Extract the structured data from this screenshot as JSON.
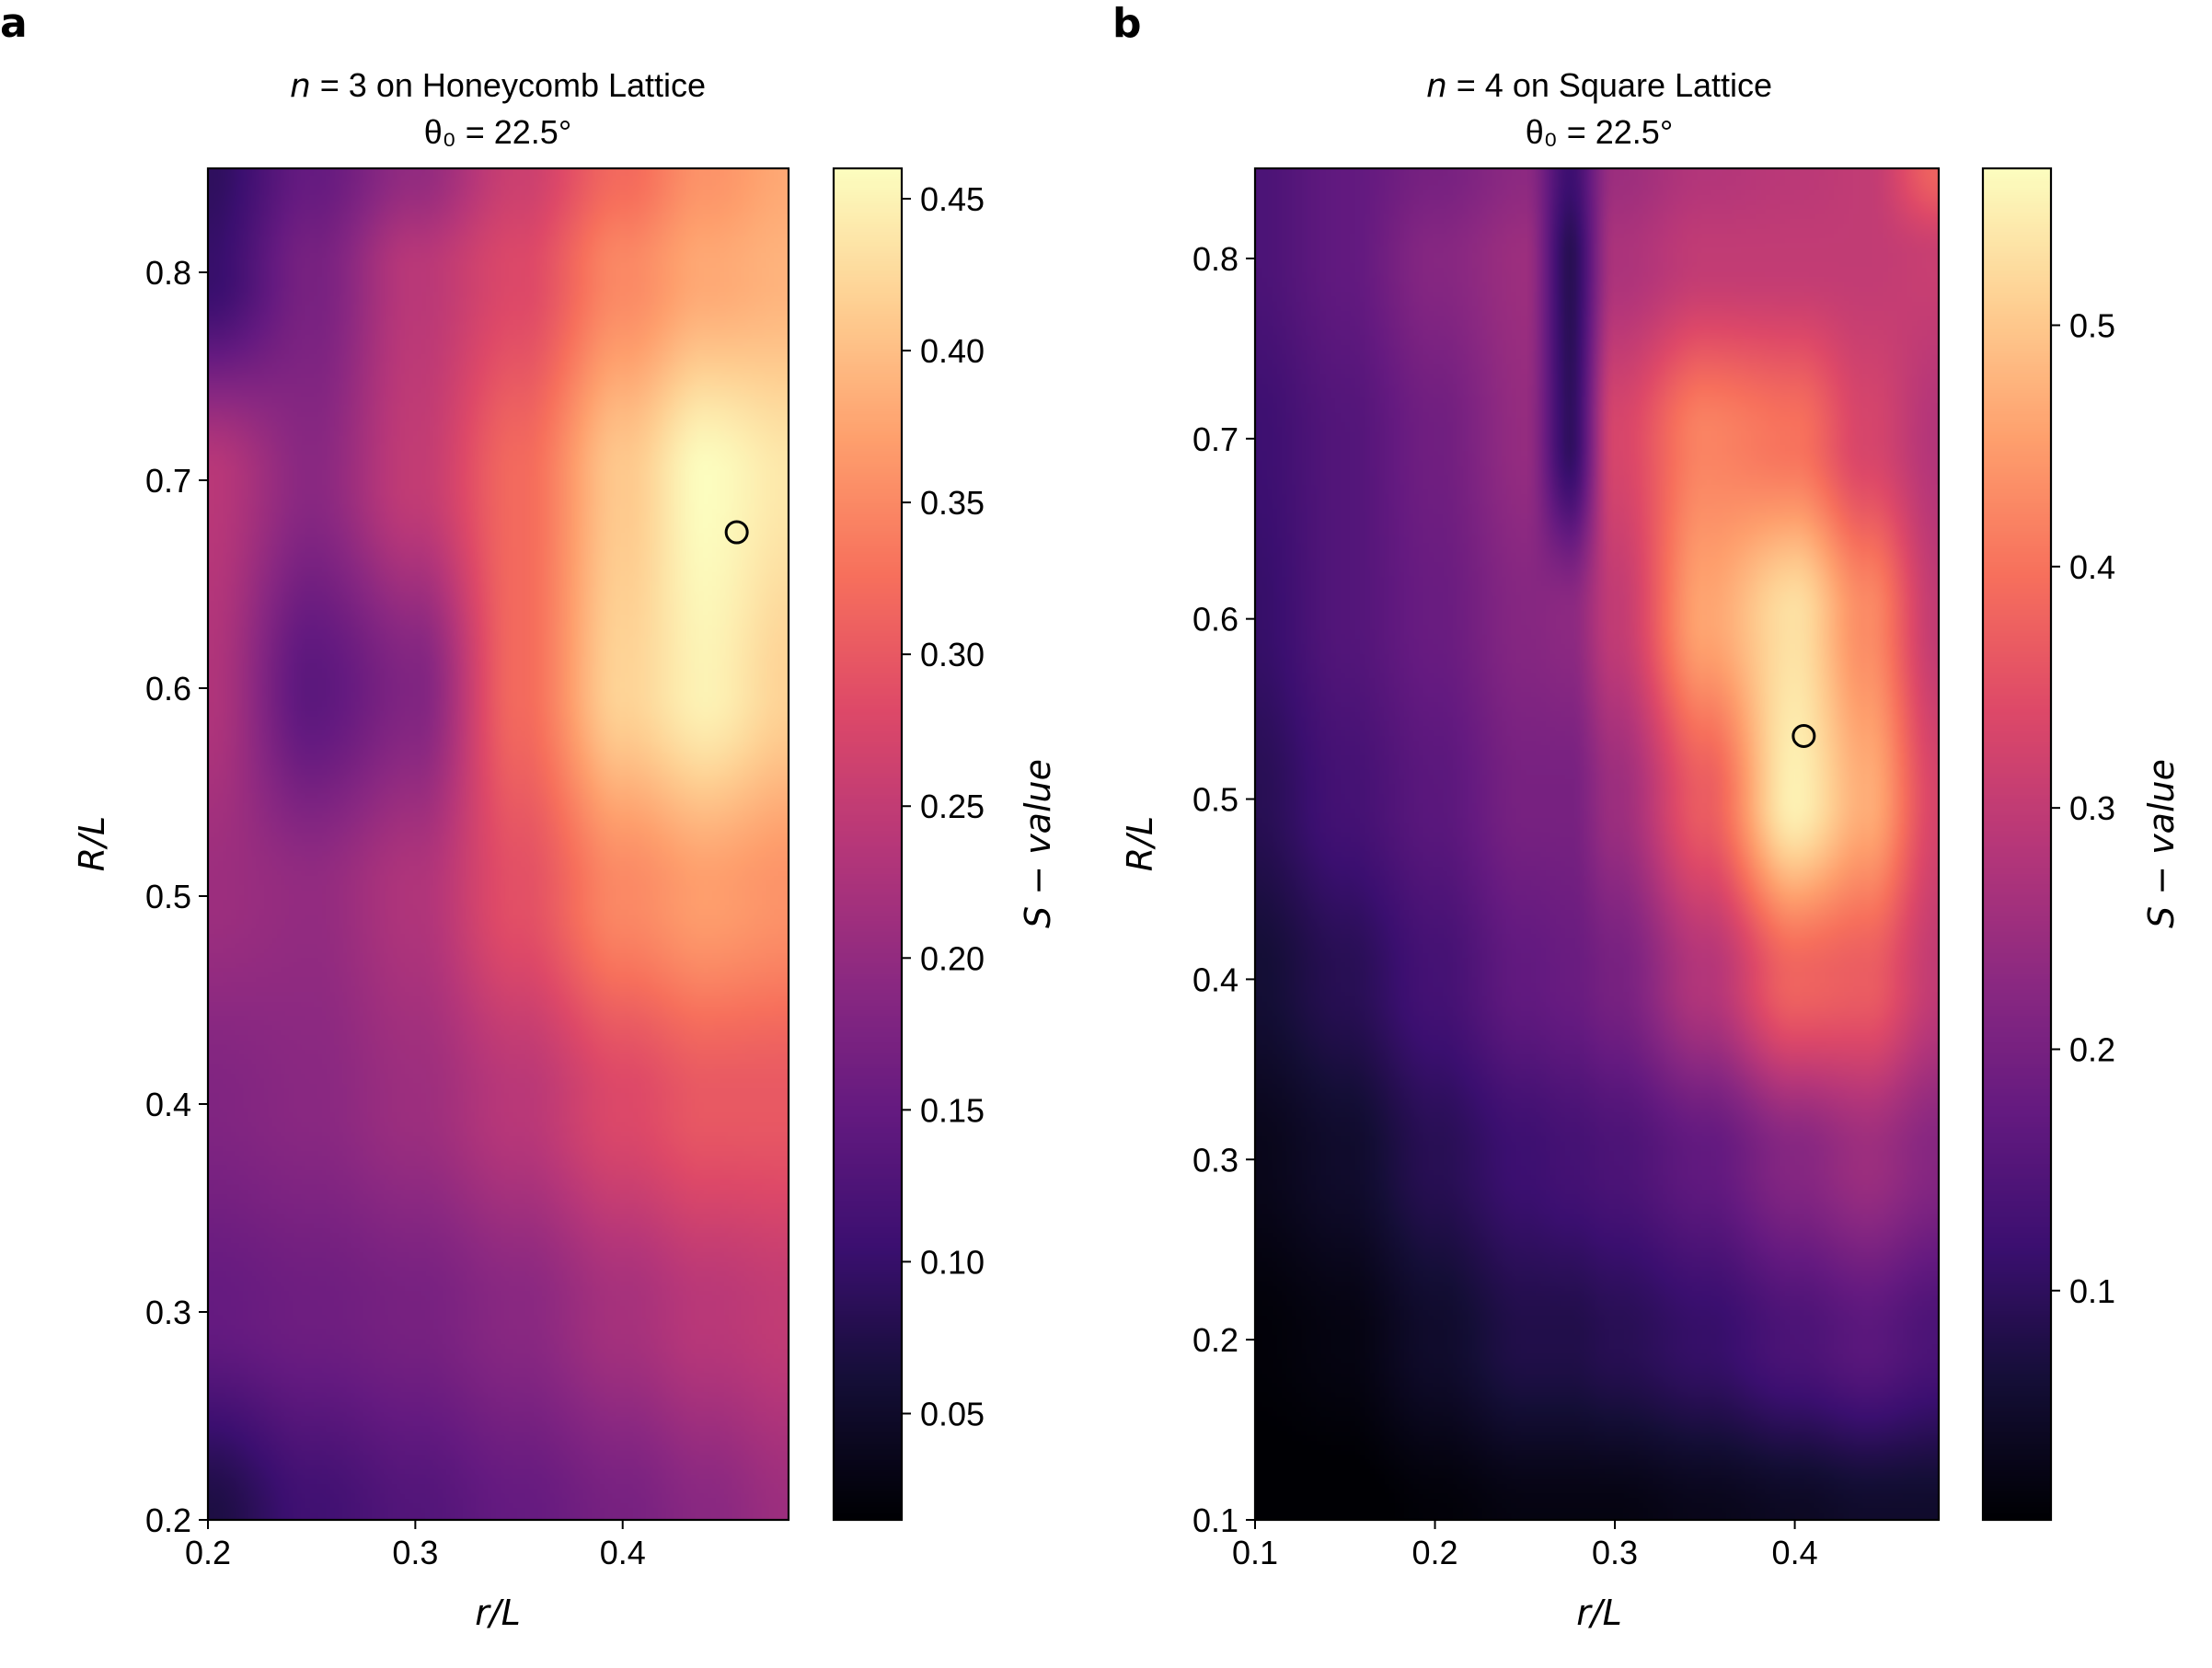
{
  "figure": {
    "panels": [
      "a",
      "b"
    ]
  },
  "chart_data": [
    {
      "type": "heatmap",
      "panel": "a",
      "title_line1_prefix": "n",
      "title_line1_rest": " = 3 on Honeycomb Lattice",
      "title_line2": "θ₀ = 22.5°",
      "xlabel": "r/L",
      "ylabel": "R/L",
      "colorbar_label": "S − value",
      "colormap": "magma",
      "xlim": [
        0.2,
        0.48
      ],
      "ylim": [
        0.2,
        0.85
      ],
      "xticks": [
        0.2,
        0.3,
        0.4
      ],
      "xtick_labels": [
        "0.2",
        "0.3",
        "0.4"
      ],
      "yticks": [
        0.2,
        0.3,
        0.4,
        0.5,
        0.6,
        0.7,
        0.8
      ],
      "ytick_labels": [
        "0.2",
        "0.3",
        "0.4",
        "0.5",
        "0.6",
        "0.7",
        "0.8"
      ],
      "clim": [
        0.015,
        0.46
      ],
      "cticks": [
        0.05,
        0.1,
        0.15,
        0.2,
        0.25,
        0.3,
        0.35,
        0.4,
        0.45
      ],
      "ctick_labels": [
        "0.05",
        "0.10",
        "0.15",
        "0.20",
        "0.25",
        "0.30",
        "0.35",
        "0.40",
        "0.45"
      ],
      "marker": {
        "x": 0.455,
        "y": 0.675,
        "style": "open circle"
      },
      "grid": false,
      "field": {
        "x": [
          0.2,
          0.25,
          0.3,
          0.35,
          0.4,
          0.44,
          0.48
        ],
        "y": [
          0.2,
          0.3,
          0.4,
          0.5,
          0.6,
          0.7,
          0.8,
          0.85
        ],
        "z": [
          [
            0.07,
            0.11,
            0.13,
            0.15,
            0.17,
            0.19,
            0.21
          ],
          [
            0.15,
            0.16,
            0.17,
            0.19,
            0.22,
            0.24,
            0.25
          ],
          [
            0.18,
            0.19,
            0.21,
            0.24,
            0.28,
            0.3,
            0.3
          ],
          [
            0.21,
            0.2,
            0.23,
            0.29,
            0.35,
            0.37,
            0.36
          ],
          [
            0.23,
            0.14,
            0.18,
            0.32,
            0.42,
            0.45,
            0.42
          ],
          [
            0.24,
            0.19,
            0.25,
            0.32,
            0.41,
            0.46,
            0.44
          ],
          [
            0.1,
            0.17,
            0.24,
            0.28,
            0.35,
            0.38,
            0.39
          ],
          [
            0.09,
            0.15,
            0.2,
            0.26,
            0.32,
            0.36,
            0.38
          ]
        ]
      }
    },
    {
      "type": "heatmap",
      "panel": "b",
      "title_line1_prefix": "n",
      "title_line1_rest": " = 4 on Square Lattice",
      "title_line2": "θ₀ = 22.5°",
      "xlabel": "r/L",
      "ylabel": "R/L",
      "colorbar_label": "S − value",
      "colormap": "magma",
      "xlim": [
        0.1,
        0.48
      ],
      "ylim": [
        0.1,
        0.85
      ],
      "xticks": [
        0.1,
        0.2,
        0.3,
        0.4
      ],
      "xtick_labels": [
        "0.1",
        "0.2",
        "0.3",
        "0.4"
      ],
      "yticks": [
        0.1,
        0.2,
        0.3,
        0.4,
        0.5,
        0.6,
        0.7,
        0.8
      ],
      "ytick_labels": [
        "0.1",
        "0.2",
        "0.3",
        "0.4",
        "0.5",
        "0.6",
        "0.7",
        "0.8"
      ],
      "clim": [
        0.005,
        0.565
      ],
      "cticks": [
        0.1,
        0.2,
        0.3,
        0.4,
        0.5
      ],
      "ctick_labels": [
        "0.1",
        "0.2",
        "0.3",
        "0.4",
        "0.5"
      ],
      "marker": {
        "x": 0.405,
        "y": 0.535,
        "style": "open circle"
      },
      "grid": false,
      "field": {
        "x": [
          0.1,
          0.15,
          0.2,
          0.25,
          0.275,
          0.3,
          0.35,
          0.4,
          0.44,
          0.48
        ],
        "y": [
          0.1,
          0.2,
          0.3,
          0.4,
          0.5,
          0.6,
          0.7,
          0.8,
          0.85
        ],
        "z": [
          [
            0.0,
            0.0,
            0.01,
            0.02,
            0.02,
            0.02,
            0.03,
            0.04,
            0.05,
            0.05
          ],
          [
            0.01,
            0.02,
            0.05,
            0.08,
            0.08,
            0.09,
            0.11,
            0.14,
            0.16,
            0.14
          ],
          [
            0.03,
            0.05,
            0.09,
            0.12,
            0.13,
            0.14,
            0.17,
            0.22,
            0.25,
            0.22
          ],
          [
            0.06,
            0.09,
            0.13,
            0.17,
            0.18,
            0.2,
            0.28,
            0.38,
            0.37,
            0.3
          ],
          [
            0.09,
            0.13,
            0.16,
            0.2,
            0.2,
            0.25,
            0.37,
            0.55,
            0.47,
            0.33
          ],
          [
            0.11,
            0.15,
            0.18,
            0.22,
            0.23,
            0.3,
            0.46,
            0.53,
            0.43,
            0.3
          ],
          [
            0.12,
            0.15,
            0.19,
            0.24,
            0.1,
            0.33,
            0.42,
            0.4,
            0.33,
            0.28
          ],
          [
            0.14,
            0.17,
            0.22,
            0.25,
            0.09,
            0.27,
            0.3,
            0.3,
            0.3,
            0.31
          ],
          [
            0.14,
            0.17,
            0.2,
            0.23,
            0.12,
            0.25,
            0.28,
            0.29,
            0.3,
            0.38
          ]
        ]
      }
    }
  ]
}
